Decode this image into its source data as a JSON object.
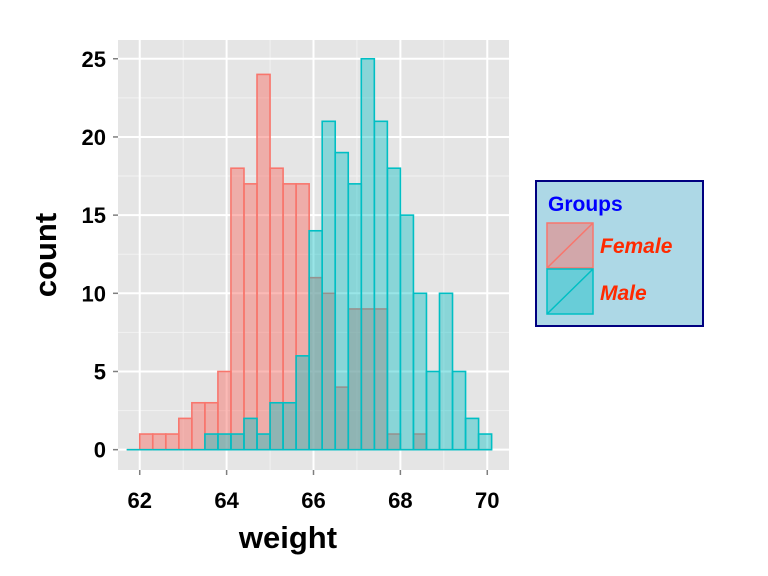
{
  "chart_data": {
    "type": "histogram",
    "title": "",
    "xlabel": "weight",
    "ylabel": "count",
    "xlim": [
      61.5,
      70.5
    ],
    "ylim": [
      -1.3,
      26.2
    ],
    "x_ticks": [
      62,
      64,
      66,
      68,
      70
    ],
    "y_ticks": [
      0,
      5,
      10,
      15,
      20,
      25
    ],
    "bin_width": 0.3,
    "bin_starts": [
      61.7,
      62.0,
      62.3,
      62.6,
      62.9,
      63.2,
      63.5,
      63.8,
      64.1,
      64.4,
      64.7,
      65.0,
      65.3,
      65.6,
      65.9,
      66.2,
      66.5,
      66.8,
      67.1,
      67.4,
      67.7,
      68.0,
      68.3,
      68.6,
      68.9,
      69.2,
      69.5,
      69.8
    ],
    "grid": true,
    "legend_position": "right",
    "legend_title": "Groups",
    "series": [
      {
        "name": "Female",
        "fill": "#f8766d",
        "fill_opacity": 0.5,
        "stroke": "#f8766d",
        "counts": [
          0,
          1,
          1,
          1,
          2,
          3,
          3,
          5,
          18,
          17,
          24,
          18,
          17,
          17,
          11,
          10,
          4,
          9,
          9,
          9,
          1,
          0,
          1,
          0,
          0,
          0,
          0,
          0
        ]
      },
      {
        "name": "Male",
        "fill": "#00bfc4",
        "fill_opacity": 0.4,
        "stroke": "#00bfc4",
        "counts": [
          0,
          0,
          0,
          0,
          0,
          0,
          1,
          1,
          1,
          2,
          1,
          3,
          3,
          6,
          14,
          21,
          19,
          17,
          25,
          21,
          18,
          15,
          10,
          5,
          10,
          5,
          2,
          1
        ]
      }
    ]
  },
  "colors": {
    "panel_bg": "#e5e5e5",
    "grid_major": "#ffffff",
    "grid_minor": "#f2f2f2",
    "legend_bg": "#add8e6",
    "legend_border": "#000080",
    "legend_title_color": "#0000ff",
    "legend_label_color": "#ff2a00"
  }
}
